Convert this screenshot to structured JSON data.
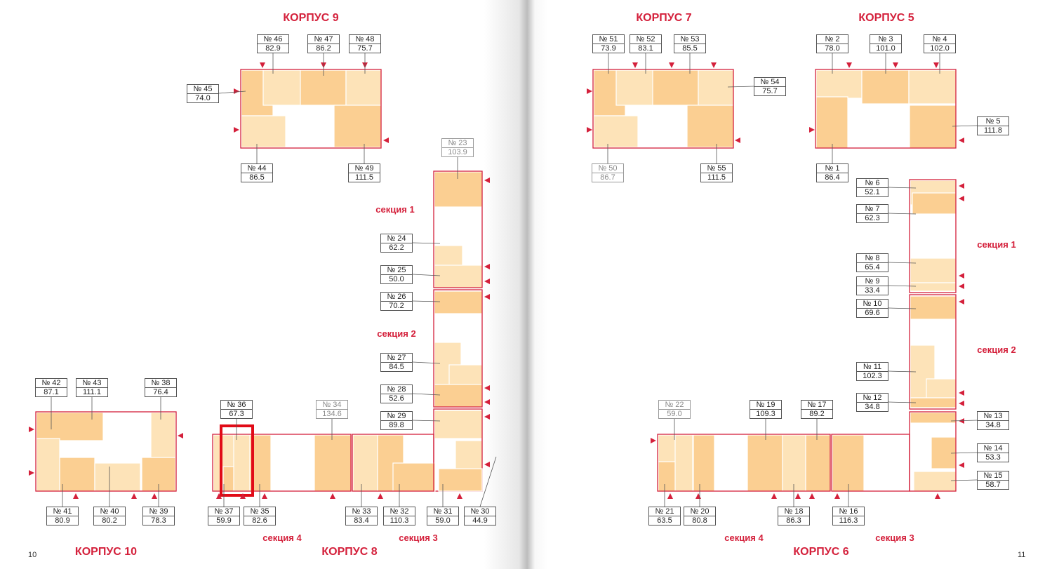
{
  "headings": [
    {
      "id": "k9",
      "text": "КОРПУС 9"
    },
    {
      "id": "k7",
      "text": "КОРПУС 7"
    },
    {
      "id": "k5",
      "text": "КОРПУС 5"
    },
    {
      "id": "k10",
      "text": "КОРПУС 10"
    },
    {
      "id": "k8",
      "text": "КОРПУС 8"
    },
    {
      "id": "k6",
      "text": "КОРПУС 6"
    }
  ],
  "sections": [
    {
      "id": "l1",
      "text": "секция 1"
    },
    {
      "id": "l2",
      "text": "секция 2"
    },
    {
      "id": "l4",
      "text": "секция 4"
    },
    {
      "id": "l3",
      "text": "секция 3"
    },
    {
      "id": "r1",
      "text": "секция 1"
    },
    {
      "id": "r2",
      "text": "секция 2"
    },
    {
      "id": "r4",
      "text": "секция 4"
    },
    {
      "id": "r3",
      "text": "секция 3"
    }
  ],
  "page_numbers": {
    "left": "10",
    "right": "11"
  },
  "apartments": [
    {
      "no": "№ 46",
      "area": "82.9"
    },
    {
      "no": "№ 47",
      "area": "86.2"
    },
    {
      "no": "№ 48",
      "area": "75.7"
    },
    {
      "no": "№ 45",
      "area": "74.0"
    },
    {
      "no": "№ 44",
      "area": "86.5"
    },
    {
      "no": "№ 49",
      "area": "111.5"
    },
    {
      "no": "№ 23",
      "area": "103.9",
      "muted": true
    },
    {
      "no": "№ 24",
      "area": "62.2"
    },
    {
      "no": "№ 25",
      "area": "50.0"
    },
    {
      "no": "№ 26",
      "area": "70.2"
    },
    {
      "no": "№ 27",
      "area": "84.5"
    },
    {
      "no": "№ 28",
      "area": "52.6"
    },
    {
      "no": "№ 29",
      "area": "89.8"
    },
    {
      "no": "№ 42",
      "area": "87.1"
    },
    {
      "no": "№ 43",
      "area": "111.1"
    },
    {
      "no": "№ 38",
      "area": "76.4"
    },
    {
      "no": "№ 36",
      "area": "67.3"
    },
    {
      "no": "№ 34",
      "area": "134.6",
      "muted": true
    },
    {
      "no": "№ 41",
      "area": "80.9"
    },
    {
      "no": "№ 40",
      "area": "80.2"
    },
    {
      "no": "№ 39",
      "area": "78.3"
    },
    {
      "no": "№ 37",
      "area": "59.9"
    },
    {
      "no": "№ 35",
      "area": "82.6"
    },
    {
      "no": "№ 33",
      "area": "83.4"
    },
    {
      "no": "№ 32",
      "area": "110.3"
    },
    {
      "no": "№ 31",
      "area": "59.0"
    },
    {
      "no": "№ 30",
      "area": "44.9"
    },
    {
      "no": "№ 51",
      "area": "73.9"
    },
    {
      "no": "№ 52",
      "area": "83.1"
    },
    {
      "no": "№ 53",
      "area": "85.5"
    },
    {
      "no": "№ 54",
      "area": "75.7"
    },
    {
      "no": "№ 50",
      "area": "86.7",
      "muted": true
    },
    {
      "no": "№ 55",
      "area": "111.5"
    },
    {
      "no": "№ 2",
      "area": "78.0"
    },
    {
      "no": "№ 3",
      "area": "101.0"
    },
    {
      "no": "№ 4",
      "area": "102.0"
    },
    {
      "no": "№ 5",
      "area": "111.8"
    },
    {
      "no": "№ 1",
      "area": "86.4"
    },
    {
      "no": "№ 6",
      "area": "52.1"
    },
    {
      "no": "№ 7",
      "area": "62.3"
    },
    {
      "no": "№ 8",
      "area": "65.4"
    },
    {
      "no": "№ 9",
      "area": "33.4"
    },
    {
      "no": "№ 10",
      "area": "69.6"
    },
    {
      "no": "№ 11",
      "area": "102.3"
    },
    {
      "no": "№ 12",
      "area": "34.8"
    },
    {
      "no": "№ 13",
      "area": "34.8"
    },
    {
      "no": "№ 14",
      "area": "53.3"
    },
    {
      "no": "№ 15",
      "area": "58.7"
    },
    {
      "no": "№ 22",
      "area": "59.0",
      "muted": true
    },
    {
      "no": "№ 19",
      "area": "109.3"
    },
    {
      "no": "№ 17",
      "area": "89.2"
    },
    {
      "no": "№ 21",
      "area": "63.5"
    },
    {
      "no": "№ 20",
      "area": "80.8"
    },
    {
      "no": "№ 18",
      "area": "86.3"
    },
    {
      "no": "№ 16",
      "area": "116.3"
    }
  ],
  "colors": {
    "accent": "#d4203b",
    "apt_light": "#fde3b8",
    "apt_dark": "#fbcf92",
    "line": "#555555"
  }
}
